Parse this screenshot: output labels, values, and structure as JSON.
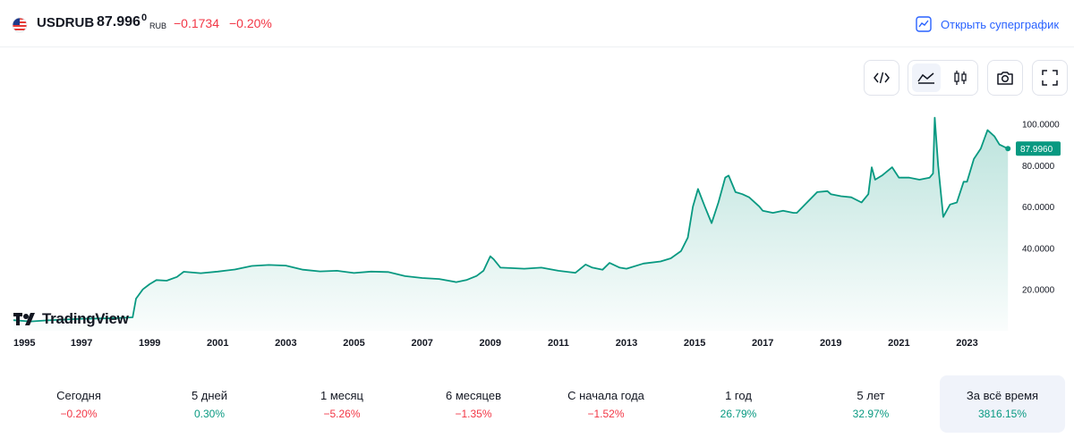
{
  "header": {
    "symbol": "USDRUB",
    "price_main": "87.996",
    "price_tail": "0",
    "currency": "RUB",
    "change": "−0.1734",
    "change_pct": "−0.20%",
    "supergraph_label": "Открыть суперграфик"
  },
  "toolbar": {
    "embed_icon": "code-icon",
    "area_icon": "area-chart-icon",
    "candles_icon": "candles-icon",
    "snapshot_icon": "camera-icon",
    "fullscreen_icon": "fullscreen-icon"
  },
  "logo": {
    "text": "TradingView"
  },
  "colors": {
    "line": "#089981",
    "negative": "#f23645",
    "positive": "#089981",
    "accent": "#2962ff",
    "active_bg": "#f0f3fa"
  },
  "chart_data": {
    "type": "area",
    "title": "USDRUB",
    "xlabel": "",
    "ylabel": "",
    "x_ticks": [
      "1995",
      "1997",
      "1999",
      "2001",
      "2003",
      "2005",
      "2007",
      "2009",
      "2011",
      "2013",
      "2015",
      "2017",
      "2019",
      "2021",
      "2023"
    ],
    "y_ticks": [
      "20.0000",
      "40.0000",
      "60.0000",
      "80.0000",
      "100.0000"
    ],
    "ylim": [
      0,
      108
    ],
    "xlim": [
      1995.0,
      2024.3
    ],
    "last_value_label": "87.9960",
    "series": [
      {
        "name": "USDRUB",
        "x": [
          1995.0,
          1995.5,
          1996.0,
          1996.5,
          1997.0,
          1997.5,
          1998.0,
          1998.5,
          1998.6,
          1998.8,
          1999.0,
          1999.2,
          1999.5,
          1999.8,
          2000.0,
          2000.5,
          2001.0,
          2001.5,
          2002.0,
          2002.5,
          2003.0,
          2003.5,
          2004.0,
          2004.5,
          2005.0,
          2005.5,
          2006.0,
          2006.5,
          2007.0,
          2007.5,
          2008.0,
          2008.3,
          2008.6,
          2008.8,
          2009.0,
          2009.1,
          2009.3,
          2009.6,
          2010.0,
          2010.5,
          2011.0,
          2011.5,
          2011.8,
          2012.0,
          2012.3,
          2012.5,
          2012.8,
          2013.0,
          2013.5,
          2014.0,
          2014.3,
          2014.6,
          2014.8,
          2014.95,
          2015.1,
          2015.3,
          2015.5,
          2015.7,
          2015.9,
          2016.0,
          2016.2,
          2016.4,
          2016.6,
          2016.9,
          2017.0,
          2017.3,
          2017.6,
          2017.9,
          2018.0,
          2018.3,
          2018.6,
          2018.9,
          2019.0,
          2019.3,
          2019.6,
          2019.9,
          2020.1,
          2020.2,
          2020.3,
          2020.5,
          2020.8,
          2021.0,
          2021.3,
          2021.6,
          2021.9,
          2022.0,
          2022.05,
          2022.15,
          2022.3,
          2022.5,
          2022.7,
          2022.9,
          2023.0,
          2023.2,
          2023.4,
          2023.6,
          2023.8,
          2023.95,
          2024.2
        ],
        "values": [
          5.1,
          4.5,
          5.0,
          5.4,
          5.8,
          5.9,
          6.1,
          6.5,
          15.5,
          20.0,
          22.5,
          24.5,
          24.2,
          26.0,
          28.5,
          27.8,
          28.6,
          29.6,
          31.3,
          31.8,
          31.5,
          29.5,
          28.7,
          29.0,
          27.9,
          28.6,
          28.4,
          26.4,
          25.5,
          25.0,
          23.5,
          24.5,
          26.5,
          29.0,
          36.0,
          34.5,
          30.5,
          30.3,
          30.0,
          30.5,
          29.0,
          28.0,
          32.0,
          30.5,
          29.5,
          32.8,
          30.5,
          30.0,
          32.5,
          33.5,
          35.0,
          38.5,
          45.0,
          60.0,
          68.5,
          60.0,
          52.0,
          62.0,
          74.0,
          75.0,
          67.0,
          66.0,
          64.5,
          60.0,
          58.0,
          57.0,
          58.0,
          57.0,
          57.0,
          62.0,
          67.0,
          67.5,
          66.0,
          65.0,
          64.5,
          62.0,
          66.0,
          79.0,
          73.0,
          75.0,
          79.0,
          74.0,
          74.0,
          73.0,
          74.0,
          76.0,
          103.0,
          80.0,
          55.0,
          61.0,
          62.0,
          72.0,
          72.0,
          83.0,
          88.0,
          97.0,
          94.0,
          90.0,
          88.0
        ]
      }
    ]
  },
  "periods": [
    {
      "label": "Сегодня",
      "value": "−0.20%",
      "sign": "neg"
    },
    {
      "label": "5 дней",
      "value": "0.30%",
      "sign": "pos"
    },
    {
      "label": "1 месяц",
      "value": "−5.26%",
      "sign": "neg"
    },
    {
      "label": "6 месяцев",
      "value": "−1.35%",
      "sign": "neg"
    },
    {
      "label": "С начала года",
      "value": "−1.52%",
      "sign": "neg"
    },
    {
      "label": "1 год",
      "value": "26.79%",
      "sign": "pos"
    },
    {
      "label": "5 лет",
      "value": "32.97%",
      "sign": "pos"
    },
    {
      "label": "За всё время",
      "value": "3816.15%",
      "sign": "pos"
    }
  ]
}
